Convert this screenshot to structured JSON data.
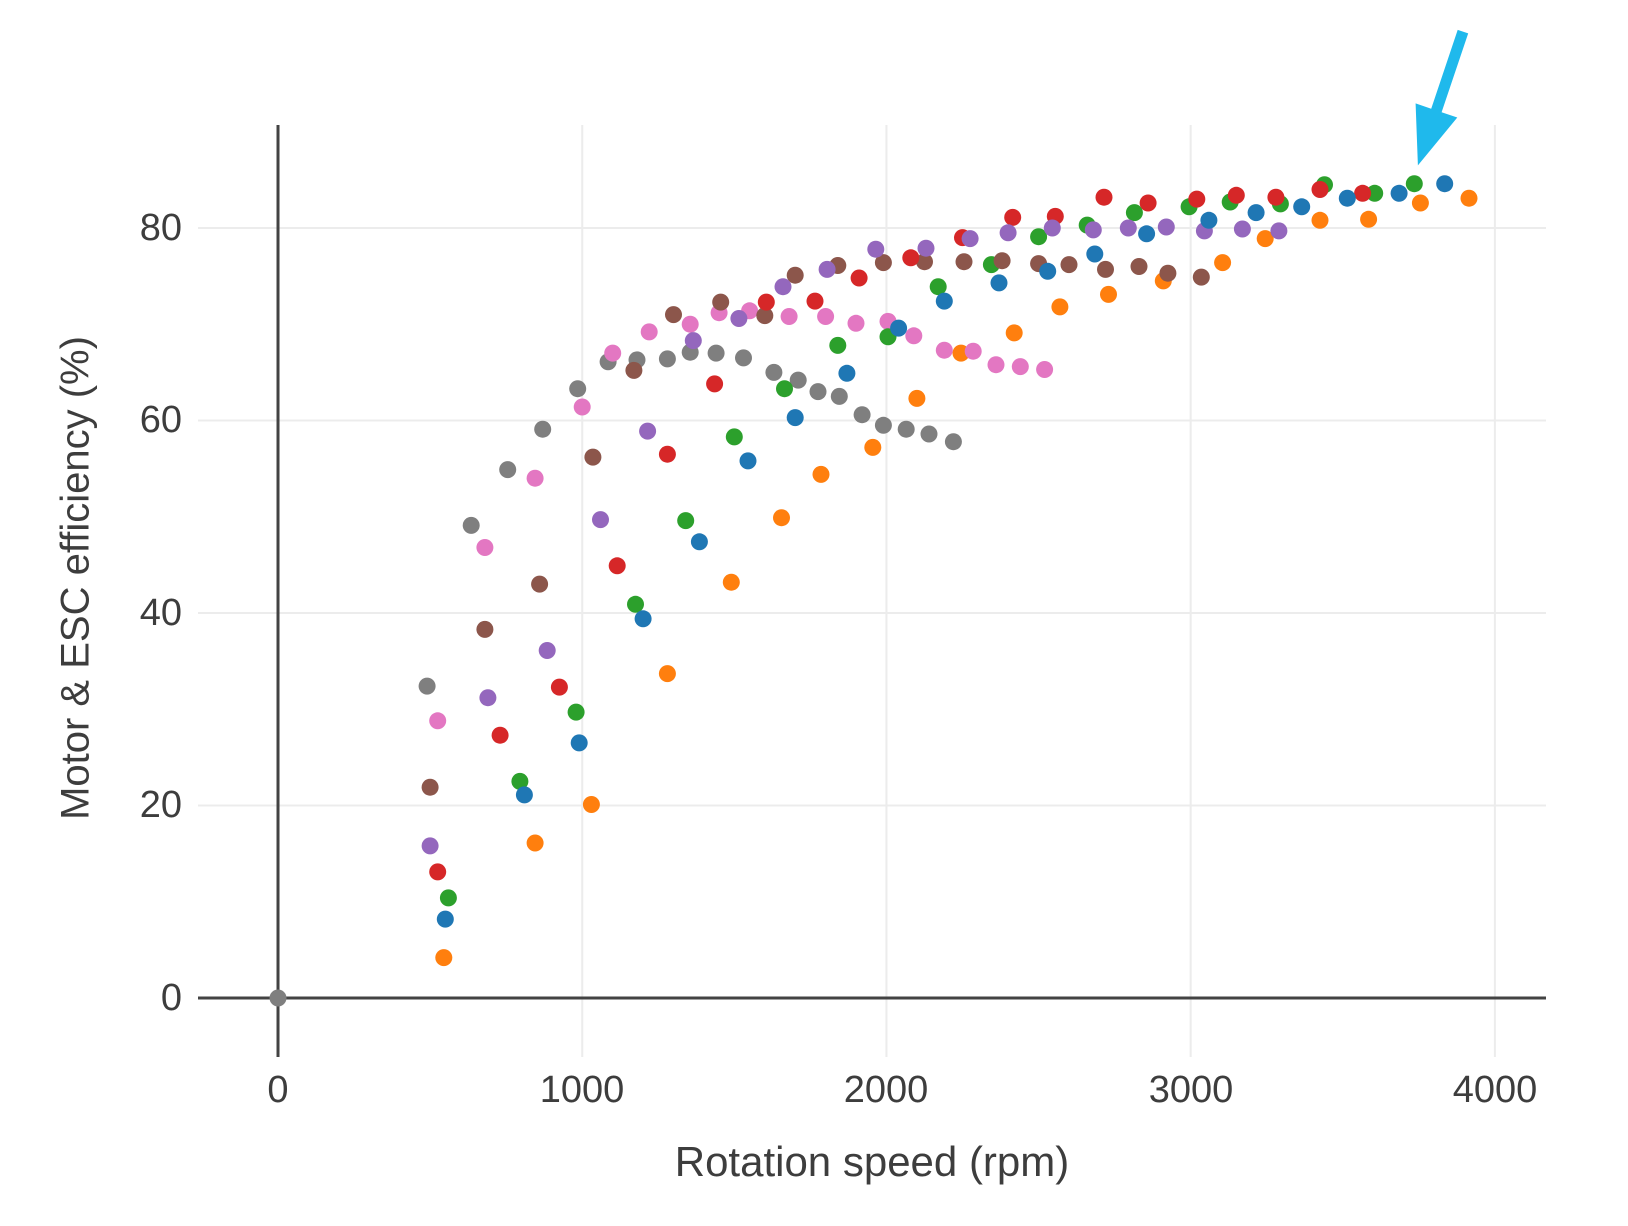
{
  "chart_data": {
    "type": "scatter",
    "title": "",
    "xlabel": "Rotation speed (rpm)",
    "ylabel": "Motor & ESC efficiency (%)",
    "x_ticks": [
      0,
      1000,
      2000,
      3000,
      4000
    ],
    "y_ticks": [
      0,
      20,
      40,
      60,
      80
    ],
    "xlim": [
      -263,
      4168
    ],
    "ylim": [
      -6.13,
      90.7
    ],
    "grid": true,
    "legend_position": "none",
    "grid_color": "#ececec",
    "zero_line_color": "#434343",
    "marker_diameter_px": 17,
    "origin_point": {
      "x": 0,
      "y": 0,
      "color": "#7f7f7f"
    },
    "series": [
      {
        "name": "orange",
        "color": "#ff7f0e",
        "points": [
          [
            545,
            4.2
          ],
          [
            845,
            16.1
          ],
          [
            1030,
            20.1
          ],
          [
            1280,
            33.7
          ],
          [
            1490,
            43.2
          ],
          [
            1655,
            49.9
          ],
          [
            1785,
            54.4
          ],
          [
            1955,
            57.2
          ],
          [
            2100,
            62.3
          ],
          [
            2245,
            67.0
          ],
          [
            2420,
            69.1
          ],
          [
            2570,
            71.8
          ],
          [
            2730,
            73.1
          ],
          [
            2910,
            74.5
          ],
          [
            3105,
            76.4
          ],
          [
            3245,
            78.9
          ],
          [
            3425,
            80.8
          ],
          [
            3585,
            80.9
          ],
          [
            3755,
            82.6
          ],
          [
            3915,
            83.1
          ]
        ]
      },
      {
        "name": "gray",
        "color": "#7f7f7f",
        "points": [
          [
            0,
            0
          ],
          [
            490,
            32.4
          ],
          [
            635,
            49.1
          ],
          [
            755,
            54.9
          ],
          [
            870,
            59.1
          ],
          [
            985,
            63.3
          ],
          [
            1085,
            66.1
          ],
          [
            1180,
            66.3
          ],
          [
            1280,
            66.4
          ],
          [
            1355,
            67.1
          ],
          [
            1440,
            67.0
          ],
          [
            1530,
            66.5
          ],
          [
            1630,
            65.0
          ],
          [
            1710,
            64.2
          ],
          [
            1775,
            63.0
          ],
          [
            1845,
            62.5
          ],
          [
            1920,
            60.6
          ],
          [
            1990,
            59.5
          ],
          [
            2065,
            59.1
          ],
          [
            2140,
            58.6
          ],
          [
            2220,
            57.8
          ]
        ]
      },
      {
        "name": "pink",
        "color": "#e377c2",
        "points": [
          [
            525,
            28.8
          ],
          [
            680,
            46.8
          ],
          [
            845,
            54.0
          ],
          [
            1000,
            61.4
          ],
          [
            1100,
            67.0
          ],
          [
            1220,
            69.2
          ],
          [
            1355,
            70.0
          ],
          [
            1450,
            71.2
          ],
          [
            1550,
            71.4
          ],
          [
            1680,
            70.8
          ],
          [
            1800,
            70.8
          ],
          [
            1900,
            70.1
          ],
          [
            2005,
            70.3
          ],
          [
            2090,
            68.8
          ],
          [
            2190,
            67.3
          ],
          [
            2285,
            67.2
          ],
          [
            2360,
            65.8
          ],
          [
            2440,
            65.6
          ],
          [
            2520,
            65.3
          ]
        ]
      },
      {
        "name": "green",
        "color": "#2ca02c",
        "points": [
          [
            560,
            10.4
          ],
          [
            795,
            22.5
          ],
          [
            980,
            29.7
          ],
          [
            1175,
            40.9
          ],
          [
            1340,
            49.6
          ],
          [
            1500,
            58.3
          ],
          [
            1665,
            63.3
          ],
          [
            1840,
            67.8
          ],
          [
            2005,
            68.7
          ],
          [
            2170,
            73.9
          ],
          [
            2345,
            76.2
          ],
          [
            2500,
            79.1
          ],
          [
            2660,
            80.3
          ],
          [
            2815,
            81.6
          ],
          [
            2995,
            82.2
          ],
          [
            3130,
            82.7
          ],
          [
            3295,
            82.5
          ],
          [
            3440,
            84.5
          ],
          [
            3605,
            83.6
          ],
          [
            3735,
            84.6
          ]
        ]
      },
      {
        "name": "brown",
        "color": "#8c564b",
        "points": [
          [
            500,
            21.9
          ],
          [
            680,
            38.3
          ],
          [
            860,
            43.0
          ],
          [
            1035,
            56.2
          ],
          [
            1170,
            65.2
          ],
          [
            1300,
            71.0
          ],
          [
            1455,
            72.3
          ],
          [
            1600,
            70.9
          ],
          [
            1700,
            75.1
          ],
          [
            1840,
            76.1
          ],
          [
            1990,
            76.4
          ],
          [
            2125,
            76.5
          ],
          [
            2255,
            76.5
          ],
          [
            2380,
            76.6
          ],
          [
            2500,
            76.3
          ],
          [
            2600,
            76.2
          ],
          [
            2720,
            75.7
          ],
          [
            2830,
            76.0
          ],
          [
            2925,
            75.3
          ],
          [
            3035,
            74.9
          ]
        ]
      },
      {
        "name": "red",
        "color": "#d62728",
        "points": [
          [
            525,
            13.1
          ],
          [
            730,
            27.3
          ],
          [
            925,
            32.3
          ],
          [
            1115,
            44.9
          ],
          [
            1280,
            56.5
          ],
          [
            1435,
            63.8
          ],
          [
            1605,
            72.3
          ],
          [
            1765,
            72.4
          ],
          [
            1910,
            74.8
          ],
          [
            2080,
            76.9
          ],
          [
            2250,
            79.0
          ],
          [
            2415,
            81.1
          ],
          [
            2555,
            81.2
          ],
          [
            2715,
            83.2
          ],
          [
            2860,
            82.6
          ],
          [
            3020,
            83.0
          ],
          [
            3150,
            83.4
          ],
          [
            3280,
            83.2
          ],
          [
            3425,
            84.0
          ],
          [
            3565,
            83.6
          ]
        ]
      },
      {
        "name": "purple",
        "color": "#9467bd",
        "points": [
          [
            500,
            15.8
          ],
          [
            690,
            31.2
          ],
          [
            885,
            36.1
          ],
          [
            1060,
            49.7
          ],
          [
            1215,
            58.9
          ],
          [
            1365,
            68.3
          ],
          [
            1515,
            70.6
          ],
          [
            1660,
            73.9
          ],
          [
            1805,
            75.7
          ],
          [
            1965,
            77.8
          ],
          [
            2130,
            77.9
          ],
          [
            2275,
            78.9
          ],
          [
            2400,
            79.5
          ],
          [
            2545,
            80.0
          ],
          [
            2680,
            79.8
          ],
          [
            2795,
            80.0
          ],
          [
            2920,
            80.1
          ],
          [
            3045,
            79.7
          ],
          [
            3170,
            79.9
          ],
          [
            3290,
            79.7
          ]
        ]
      },
      {
        "name": "blue",
        "color": "#1f77b4",
        "points": [
          [
            550,
            8.2
          ],
          [
            810,
            21.1
          ],
          [
            990,
            26.5
          ],
          [
            1200,
            39.4
          ],
          [
            1385,
            47.4
          ],
          [
            1545,
            55.8
          ],
          [
            1700,
            60.3
          ],
          [
            1870,
            64.9
          ],
          [
            2040,
            69.6
          ],
          [
            2190,
            72.4
          ],
          [
            2370,
            74.3
          ],
          [
            2530,
            75.5
          ],
          [
            2685,
            77.3
          ],
          [
            2855,
            79.4
          ],
          [
            3060,
            80.8
          ],
          [
            3215,
            81.6
          ],
          [
            3365,
            82.2
          ],
          [
            3515,
            83.1
          ],
          [
            3685,
            83.6
          ],
          [
            3835,
            84.6
          ]
        ]
      }
    ],
    "annotation": {
      "type": "arrow",
      "color": "#1fb9ec",
      "tail": {
        "x": 3895,
        "y": 100.4
      },
      "tip": {
        "x": 3747,
        "y": 86.5
      }
    }
  }
}
